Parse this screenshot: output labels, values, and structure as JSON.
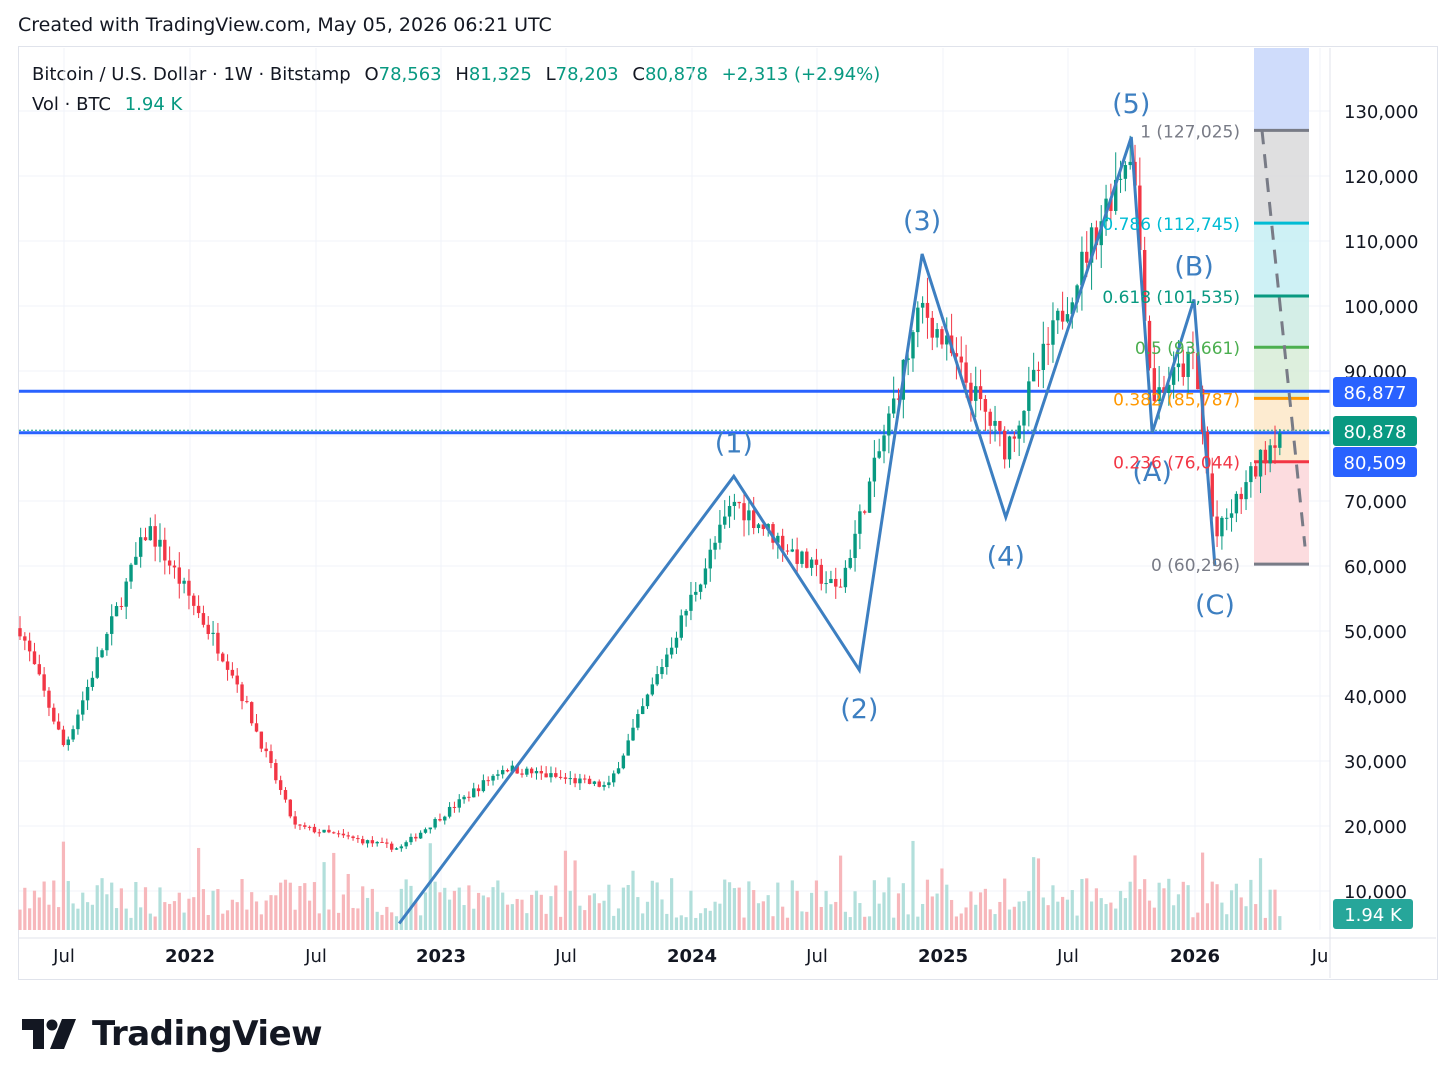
{
  "header": {
    "created_text": "Created with TradingView.com, May 05, 2026 06:21 UTC"
  },
  "legend": {
    "symbol": "Bitcoin / U.S. Dollar · 1W · Bitstamp",
    "open_label": "O",
    "open": "78,563",
    "high_label": "H",
    "high": "81,325",
    "low_label": "L",
    "low": "78,203",
    "close_label": "C",
    "close": "80,878",
    "change": "+2,313 (+2.94%)",
    "vol_label": "Vol · BTC",
    "vol_value": "1.94 K"
  },
  "brand": {
    "name": "TradingView"
  },
  "colors": {
    "up": "#089981",
    "down": "#f23645",
    "wave": "#3d7fc1",
    "hline": "#2962ff",
    "grid": "#f0f3fa",
    "axis_text": "#131722"
  },
  "chart_data": {
    "type": "candlestick",
    "interval": "1W",
    "x_ticks": [
      "Jul",
      "2022",
      "Jul",
      "2023",
      "Jul",
      "2024",
      "Jul",
      "2025",
      "Jul",
      "2026",
      "Ju"
    ],
    "y_ticks": [
      "130,000",
      "120,000",
      "110,000",
      "100,000",
      "90,000",
      "80,000",
      "70,000",
      "60,000",
      "50,000",
      "40,000",
      "30,000",
      "20,000",
      "10,000"
    ],
    "ylim": [
      0,
      135000
    ],
    "price_key_points": [
      {
        "t": "2021-04",
        "p": 58000
      },
      {
        "t": "2021-07",
        "p": 32000
      },
      {
        "t": "2021-11",
        "p": 66000
      },
      {
        "t": "2022-03",
        "p": 44000
      },
      {
        "t": "2022-06",
        "p": 20000
      },
      {
        "t": "2022-11",
        "p": 16500
      },
      {
        "t": "2023-04",
        "p": 29000
      },
      {
        "t": "2023-09",
        "p": 26000
      },
      {
        "t": "2024-03",
        "p": 70000
      },
      {
        "t": "2024-08",
        "p": 56000
      },
      {
        "t": "2024-12",
        "p": 100000
      },
      {
        "t": "2025-04",
        "p": 78000
      },
      {
        "t": "2025-10",
        "p": 125000
      },
      {
        "t": "2025-11",
        "p": 86000
      },
      {
        "t": "2026-01",
        "p": 92000
      },
      {
        "t": "2026-02",
        "p": 64000
      },
      {
        "t": "2026-05",
        "p": 80878
      }
    ],
    "waves": [
      {
        "label": "(1)",
        "t": "2024-03",
        "p": 73800
      },
      {
        "label": "(2)",
        "t": "2024-09",
        "p": 44000
      },
      {
        "label": "(3)",
        "t": "2024-12",
        "p": 108000
      },
      {
        "label": "(4)",
        "t": "2025-04",
        "p": 67500
      },
      {
        "label": "(5)",
        "t": "2025-10",
        "p": 126000
      },
      {
        "label": "(A)",
        "t": "2025-11",
        "p": 80500
      },
      {
        "label": "(B)",
        "t": "2026-01",
        "p": 101000
      },
      {
        "label": "(C)",
        "t": "2026-02",
        "p": 60000
      }
    ],
    "wave_start": {
      "t": "2022-11",
      "p": 5000
    },
    "fib_levels": [
      {
        "ratio": "1",
        "value": "127,025",
        "text": "1 (127,025)",
        "price": 127025,
        "color": "#787b86"
      },
      {
        "ratio": "0.786",
        "value": "112,745",
        "text": "0.786 (112,745)",
        "price": 112745,
        "color": "#00bcd4"
      },
      {
        "ratio": "0.618",
        "value": "101,535",
        "text": "0.618 (101,535)",
        "price": 101535,
        "color": "#089981"
      },
      {
        "ratio": "0.5",
        "value": "93,661",
        "text": "0.5 (93,661)",
        "price": 93661,
        "color": "#4caf50"
      },
      {
        "ratio": "0.382",
        "value": "85,787",
        "text": "0.382 (85,787)",
        "price": 85787,
        "color": "#ff9800"
      },
      {
        "ratio": "0.236",
        "value": "76,044",
        "text": "0.236 (76,044)",
        "price": 76044,
        "color": "#f23645"
      },
      {
        "ratio": "0",
        "value": "60,296",
        "text": "0 (60,296)",
        "price": 60296,
        "color": "#787b86"
      }
    ],
    "horizontal_lines": [
      86877,
      80509
    ],
    "price_tags": [
      {
        "text": "86,877",
        "price": 86877,
        "color": "#2962ff"
      },
      {
        "text": "80,878",
        "price": 80878,
        "color": "#089981"
      },
      {
        "text": "80,509",
        "price": 80509,
        "color": "#2962ff"
      }
    ],
    "volume_tag": {
      "text": "1.94 K",
      "color": "#26a69a"
    }
  }
}
